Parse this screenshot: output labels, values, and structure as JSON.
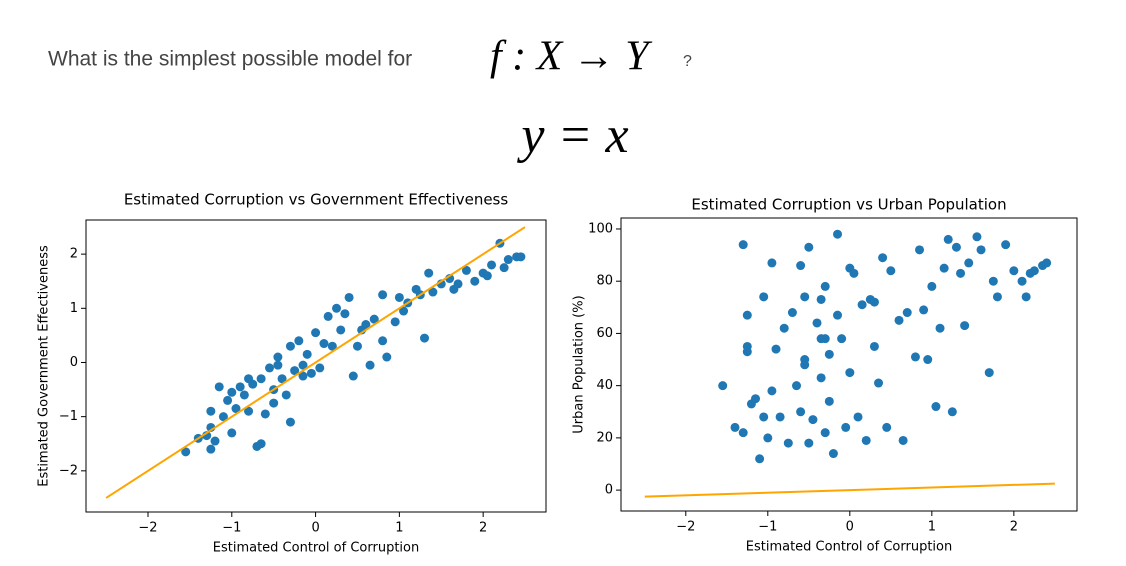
{
  "header": {
    "question": "What is the simplest possible model for",
    "mapping": "f : X → Y",
    "question_mark": "?",
    "model": "y = x"
  },
  "chart_data": [
    {
      "type": "scatter",
      "title": "Estimated Corruption vs Government Effectiveness",
      "xlabel": "Estimated Control of Corruption",
      "ylabel": "Estimated Government Effectiveness",
      "xlim": [
        -2.74,
        2.75
      ],
      "ylim": [
        -2.76,
        2.63
      ],
      "xticks": [
        {
          "value": -2,
          "label": "−2"
        },
        {
          "value": -1,
          "label": "−1"
        },
        0,
        1,
        2
      ],
      "yticks": [
        {
          "value": -2,
          "label": "−2"
        },
        {
          "value": -1,
          "label": "−1"
        },
        0,
        1,
        2
      ],
      "color": "#1f77b4",
      "x": [
        -1.55,
        -1.4,
        -1.25,
        -1.25,
        -1.25,
        -1.2,
        -1.15,
        -1.1,
        -1.05,
        -1.0,
        -1.0,
        -0.95,
        -0.9,
        -0.85,
        -0.8,
        -0.75,
        -0.7,
        -0.65,
        -0.65,
        -0.6,
        -0.55,
        -0.5,
        -0.5,
        -0.45,
        -0.4,
        -0.35,
        -0.3,
        -0.3,
        -0.25,
        -0.2,
        -0.15,
        -0.1,
        -0.05,
        0.0,
        0.05,
        0.1,
        0.15,
        0.2,
        0.25,
        0.3,
        0.35,
        0.4,
        0.45,
        0.5,
        0.6,
        0.65,
        0.7,
        0.8,
        0.85,
        0.8,
        0.95,
        1.0,
        1.05,
        1.1,
        1.2,
        1.3,
        1.35,
        1.4,
        1.5,
        1.6,
        1.7,
        1.8,
        1.9,
        2.0,
        2.1,
        2.2,
        2.25,
        2.3,
        2.4,
        2.45,
        -0.15,
        -1.3,
        -0.8,
        0.55,
        1.25,
        1.65,
        -0.45,
        2.05
      ],
      "y": [
        -1.65,
        -1.4,
        -1.6,
        -1.2,
        -0.9,
        -1.45,
        -0.45,
        -1.0,
        -0.7,
        -0.55,
        -1.3,
        -0.85,
        -0.45,
        -0.6,
        -0.9,
        -0.4,
        -1.55,
        -1.5,
        -0.3,
        -0.95,
        -0.1,
        -0.5,
        -0.75,
        0.1,
        -0.3,
        -0.6,
        0.3,
        -1.1,
        -0.15,
        0.4,
        -0.05,
        0.15,
        -0.2,
        0.55,
        -0.1,
        0.35,
        0.85,
        0.3,
        1.0,
        0.6,
        0.9,
        1.2,
        -0.25,
        0.3,
        0.7,
        -0.05,
        0.8,
        0.4,
        0.1,
        1.25,
        0.75,
        1.2,
        0.95,
        1.1,
        1.35,
        0.45,
        1.65,
        1.3,
        1.45,
        1.55,
        1.45,
        1.7,
        1.5,
        1.65,
        1.8,
        2.2,
        1.75,
        1.9,
        1.95,
        1.95,
        -0.25,
        -1.35,
        -0.3,
        0.6,
        1.25,
        1.35,
        -0.05,
        1.6
      ],
      "line": {
        "x": [
          -2.5,
          2.5
        ],
        "y": [
          -2.5,
          2.5
        ],
        "color": "#ffa500"
      }
    },
    {
      "type": "scatter",
      "title": "Estimated Corruption vs Urban Population",
      "xlabel": "Estimated Control of Corruption",
      "ylabel": "Urban Population (%)",
      "xlim": [
        -2.79,
        2.77
      ],
      "ylim": [
        -8.0,
        104.2
      ],
      "xticks": [
        {
          "value": -2,
          "label": "−2"
        },
        {
          "value": -1,
          "label": "−1"
        },
        0,
        1,
        2
      ],
      "yticks": [
        0,
        20,
        40,
        60,
        80,
        100
      ],
      "color": "#1f77b4",
      "x": [
        -1.55,
        -1.4,
        -1.3,
        -1.3,
        -1.25,
        -1.25,
        -1.2,
        -1.15,
        -1.1,
        -1.05,
        -1.05,
        -1.0,
        -0.95,
        -0.9,
        -0.85,
        -0.8,
        -0.75,
        -0.7,
        -0.65,
        -0.6,
        -0.6,
        -0.55,
        -0.55,
        -0.5,
        -0.5,
        -0.45,
        -0.4,
        -0.35,
        -0.35,
        -0.3,
        -0.3,
        -0.25,
        -0.25,
        -0.2,
        -0.15,
        -0.15,
        -0.1,
        -0.05,
        0.0,
        0.0,
        0.05,
        0.1,
        0.15,
        0.2,
        0.25,
        0.3,
        0.35,
        0.4,
        0.45,
        0.5,
        0.6,
        0.65,
        0.7,
        0.8,
        0.85,
        0.9,
        0.95,
        1.0,
        1.05,
        1.1,
        1.15,
        1.25,
        1.3,
        1.35,
        1.4,
        1.45,
        1.55,
        1.6,
        1.7,
        1.75,
        1.8,
        1.9,
        2.0,
        2.1,
        2.15,
        2.25,
        2.35,
        2.4,
        -0.3,
        -1.25,
        -0.55,
        0.3,
        -0.35,
        -0.95,
        1.2,
        2.2
      ],
      "y": [
        40,
        24,
        94,
        22,
        67,
        53,
        33,
        35,
        12,
        74,
        28,
        20,
        87,
        54,
        28,
        62,
        18,
        68,
        40,
        30,
        86,
        74,
        50,
        18,
        93,
        27,
        64,
        43,
        58,
        78,
        22,
        52,
        34,
        14,
        67,
        98,
        58,
        24,
        85,
        45,
        83,
        28,
        71,
        19,
        73,
        55,
        41,
        89,
        24,
        84,
        65,
        19,
        68,
        51,
        92,
        69,
        50,
        78,
        32,
        62,
        85,
        30,
        93,
        83,
        63,
        87,
        97,
        92,
        45,
        80,
        74,
        94,
        84,
        80,
        74,
        84,
        86,
        87,
        58,
        55,
        48,
        72,
        73,
        38,
        96,
        83
      ],
      "line": {
        "x": [
          -2.5,
          2.5
        ],
        "y": [
          -2.5,
          2.5
        ],
        "color": "#ffa500"
      }
    }
  ]
}
